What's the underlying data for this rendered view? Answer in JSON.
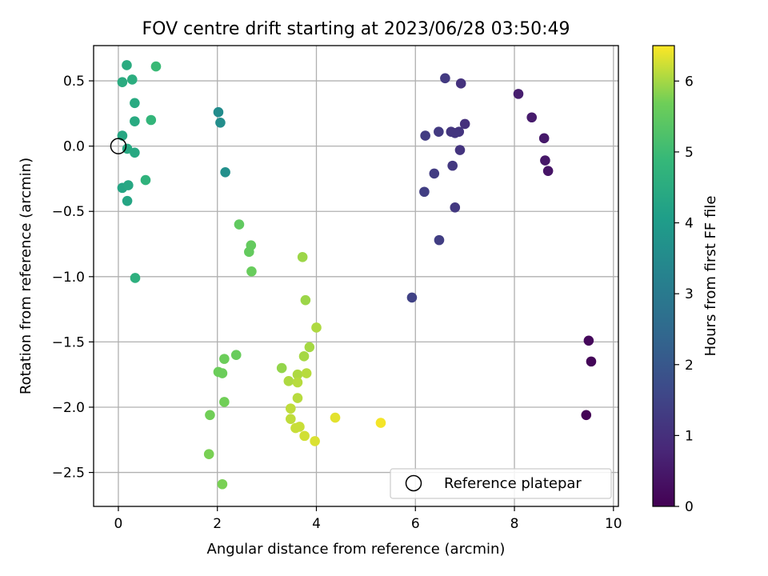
{
  "chart_data": {
    "type": "scatter",
    "title": "FOV centre drift starting at 2023/06/28 03:50:49",
    "xlabel": "Angular distance from reference (arcmin)",
    "ylabel": "Rotation from reference (arcmin)",
    "xlim": [
      -0.5,
      10.1
    ],
    "ylim": [
      -2.76,
      0.77
    ],
    "xticks": [
      0,
      2,
      4,
      6,
      8,
      10
    ],
    "yticks": [
      0.5,
      0.0,
      -0.5,
      -1.0,
      -1.5,
      -2.0,
      -2.5
    ],
    "xtick_labels": [
      "0",
      "2",
      "4",
      "6",
      "8",
      "10"
    ],
    "ytick_labels": [
      "0.5",
      "0.0",
      "−0.5",
      "−1.0",
      "−1.5",
      "−2.0",
      "−2.5"
    ],
    "grid": true,
    "legend": {
      "position": "bottom-right",
      "entries": [
        "Reference platepar"
      ]
    },
    "reference_point": {
      "x": 0.0,
      "y": 0.0
    },
    "colorbar": {
      "label": "Hours from first FF file",
      "range": [
        0,
        6.5
      ],
      "ticks": [
        0,
        1,
        2,
        3,
        4,
        5,
        6
      ],
      "tick_labels": [
        "0",
        "1",
        "2",
        "3",
        "4",
        "5",
        "6"
      ],
      "colormap": "viridis"
    },
    "points": [
      {
        "x": 9.45,
        "y": -2.06,
        "h": 0.05
      },
      {
        "x": 9.55,
        "y": -1.65,
        "h": 0.1
      },
      {
        "x": 9.5,
        "y": -1.49,
        "h": 0.15
      },
      {
        "x": 8.68,
        "y": -0.19,
        "h": 0.4
      },
      {
        "x": 8.62,
        "y": -0.11,
        "h": 0.45
      },
      {
        "x": 8.6,
        "y": 0.06,
        "h": 0.5
      },
      {
        "x": 8.35,
        "y": 0.22,
        "h": 0.55
      },
      {
        "x": 8.08,
        "y": 0.4,
        "h": 0.6
      },
      {
        "x": 7.0,
        "y": 0.17,
        "h": 1.0
      },
      {
        "x": 6.92,
        "y": 0.48,
        "h": 1.05
      },
      {
        "x": 6.9,
        "y": -0.03,
        "h": 1.1
      },
      {
        "x": 6.88,
        "y": 0.11,
        "h": 1.1
      },
      {
        "x": 6.8,
        "y": 0.1,
        "h": 1.15
      },
      {
        "x": 6.72,
        "y": 0.11,
        "h": 1.15
      },
      {
        "x": 6.75,
        "y": -0.15,
        "h": 1.2
      },
      {
        "x": 6.8,
        "y": -0.47,
        "h": 1.2
      },
      {
        "x": 6.6,
        "y": 0.52,
        "h": 1.25
      },
      {
        "x": 6.47,
        "y": 0.11,
        "h": 1.25
      },
      {
        "x": 6.38,
        "y": -0.21,
        "h": 1.3
      },
      {
        "x": 6.2,
        "y": 0.08,
        "h": 1.3
      },
      {
        "x": 6.18,
        "y": -0.35,
        "h": 1.35
      },
      {
        "x": 6.48,
        "y": -0.72,
        "h": 1.35
      },
      {
        "x": 5.93,
        "y": -1.16,
        "h": 1.45
      },
      {
        "x": 2.02,
        "y": 0.26,
        "h": 3.55
      },
      {
        "x": 2.06,
        "y": 0.18,
        "h": 3.6
      },
      {
        "x": 2.16,
        "y": -0.2,
        "h": 3.65
      },
      {
        "x": 0.08,
        "y": 0.08,
        "h": 4.35
      },
      {
        "x": 0.08,
        "y": -0.32,
        "h": 4.3
      },
      {
        "x": 0.18,
        "y": -0.42,
        "h": 4.3
      },
      {
        "x": 0.2,
        "y": -0.3,
        "h": 4.35
      },
      {
        "x": 0.18,
        "y": -0.02,
        "h": 4.4
      },
      {
        "x": 0.33,
        "y": -0.05,
        "h": 4.4
      },
      {
        "x": 0.33,
        "y": 0.33,
        "h": 4.45
      },
      {
        "x": 0.33,
        "y": 0.19,
        "h": 4.45
      },
      {
        "x": 0.08,
        "y": 0.49,
        "h": 4.5
      },
      {
        "x": 0.17,
        "y": 0.62,
        "h": 4.5
      },
      {
        "x": 0.28,
        "y": 0.51,
        "h": 4.55
      },
      {
        "x": 0.34,
        "y": -1.01,
        "h": 4.6
      },
      {
        "x": 0.55,
        "y": -0.26,
        "h": 4.7
      },
      {
        "x": 0.66,
        "y": 0.2,
        "h": 4.8
      },
      {
        "x": 0.76,
        "y": 0.61,
        "h": 4.95
      },
      {
        "x": 2.44,
        "y": -0.6,
        "h": 5.5
      },
      {
        "x": 2.68,
        "y": -0.76,
        "h": 5.55
      },
      {
        "x": 2.64,
        "y": -0.81,
        "h": 5.55
      },
      {
        "x": 2.69,
        "y": -0.96,
        "h": 5.6
      },
      {
        "x": 2.38,
        "y": -1.6,
        "h": 5.6
      },
      {
        "x": 2.14,
        "y": -1.63,
        "h": 5.65
      },
      {
        "x": 2.02,
        "y": -1.73,
        "h": 5.65
      },
      {
        "x": 2.1,
        "y": -1.74,
        "h": 5.65
      },
      {
        "x": 2.14,
        "y": -1.96,
        "h": 5.7
      },
      {
        "x": 1.85,
        "y": -2.06,
        "h": 5.7
      },
      {
        "x": 1.83,
        "y": -2.36,
        "h": 5.75
      },
      {
        "x": 2.1,
        "y": -2.59,
        "h": 5.75
      },
      {
        "x": 3.3,
        "y": -1.7,
        "h": 5.9
      },
      {
        "x": 3.72,
        "y": -0.85,
        "h": 5.95
      },
      {
        "x": 3.78,
        "y": -1.18,
        "h": 5.95
      },
      {
        "x": 3.75,
        "y": -1.61,
        "h": 6.0
      },
      {
        "x": 3.86,
        "y": -1.54,
        "h": 6.0
      },
      {
        "x": 4.0,
        "y": -1.39,
        "h": 6.05
      },
      {
        "x": 3.44,
        "y": -1.8,
        "h": 6.05
      },
      {
        "x": 3.62,
        "y": -1.75,
        "h": 6.05
      },
      {
        "x": 3.62,
        "y": -1.81,
        "h": 6.1
      },
      {
        "x": 3.8,
        "y": -1.74,
        "h": 6.1
      },
      {
        "x": 3.62,
        "y": -1.93,
        "h": 6.1
      },
      {
        "x": 3.48,
        "y": -2.01,
        "h": 6.15
      },
      {
        "x": 3.48,
        "y": -2.09,
        "h": 6.15
      },
      {
        "x": 3.58,
        "y": -2.16,
        "h": 6.2
      },
      {
        "x": 3.66,
        "y": -2.15,
        "h": 6.2
      },
      {
        "x": 3.76,
        "y": -2.22,
        "h": 6.25
      },
      {
        "x": 3.97,
        "y": -2.26,
        "h": 6.3
      },
      {
        "x": 4.38,
        "y": -2.08,
        "h": 6.35
      },
      {
        "x": 5.3,
        "y": -2.12,
        "h": 6.45
      }
    ]
  }
}
